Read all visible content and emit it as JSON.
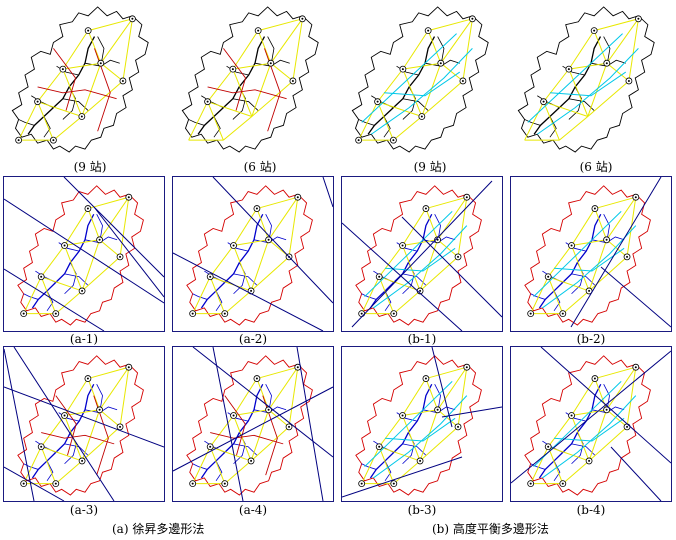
{
  "top_row": {
    "captions": [
      "(9 站)",
      "(6 站)",
      "(9 站)",
      "(6 站)"
    ]
  },
  "middle_row": {
    "captions": [
      "(a-1)",
      "(a-2)",
      "(b-1)",
      "(b-2)"
    ]
  },
  "bottom_row": {
    "captions": [
      "(a-3)",
      "(a-4)",
      "(b-3)",
      "(b-4)"
    ]
  },
  "group_titles": {
    "a": "(a)  徐昇多邊形法",
    "b": "(b)  高度平衡多邊形法"
  },
  "colors": {
    "watershed_outline_top": "#000000",
    "watershed_outline_framed": "#d40000",
    "river": "#0000cc",
    "triangulation": "#e8e800",
    "bisector_lines": "#000080",
    "balance_lines": "#00c8e8",
    "thiessen_red": "#c00000",
    "frame": "#1a1a80"
  }
}
